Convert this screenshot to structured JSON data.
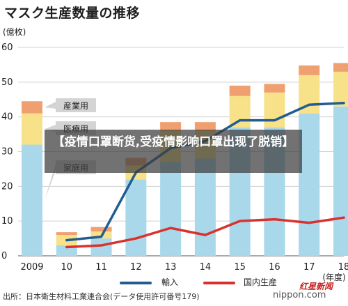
{
  "title": "マスク生産数量の推移",
  "overlay_text": "【疫情口罩断货,受疫情影响口罩出现了脱销】",
  "source": "出所：日本衛生材料工業連合会(データ使用許可番号179)",
  "watermark_site": "nippon.com",
  "watermark_logo": "红星新闻",
  "colors": {
    "home": "#a8d8ea",
    "medical": "#f7e28a",
    "industrial": "#f0a070",
    "import": "#235d8f",
    "domestic": "#d9322e",
    "grid": "#d0d0d0",
    "label_bg": "#d4d4d4"
  },
  "chart_data": {
    "type": "bar",
    "title": "マスク生産数量の推移",
    "ylabel": "(億枚)",
    "xlabel": "(年度)",
    "ylim": [
      0,
      60
    ],
    "yticks": [
      0,
      10,
      20,
      30,
      40,
      50,
      60
    ],
    "categories": [
      "2009",
      "10",
      "11",
      "12",
      "13",
      "14",
      "15",
      "16",
      "17",
      "18"
    ],
    "stacked_series": [
      {
        "name": "家庭用",
        "values": [
          32,
          3,
          5,
          22,
          27,
          28,
          37,
          37,
          41,
          43
        ]
      },
      {
        "name": "医療用",
        "values": [
          9,
          3,
          2,
          4,
          9,
          8,
          9,
          10,
          11,
          10
        ]
      },
      {
        "name": "産業用",
        "values": [
          3.5,
          0.8,
          1.3,
          2.2,
          2.5,
          2.5,
          3,
          2.5,
          2.8,
          2.5
        ]
      }
    ],
    "line_series": [
      {
        "name": "輸入",
        "values": [
          null,
          4.5,
          5.5,
          24,
          31,
          33,
          39,
          39,
          43.5,
          44
        ]
      },
      {
        "name": "国内生産",
        "values": [
          null,
          2.5,
          3,
          5,
          8,
          6,
          10,
          10.5,
          9.5,
          11
        ]
      }
    ],
    "legend": {
      "position": "bottom"
    }
  }
}
